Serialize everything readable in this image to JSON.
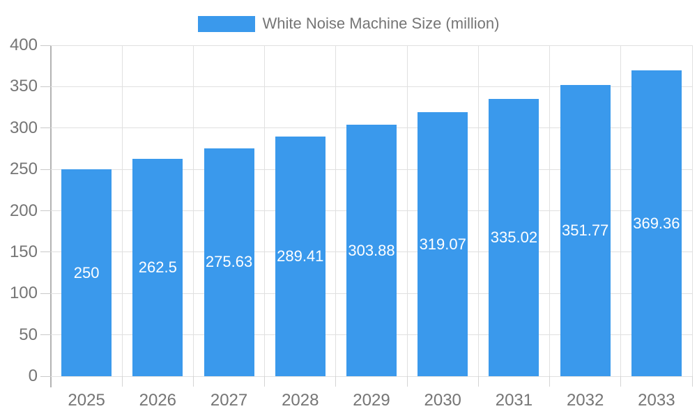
{
  "legend": {
    "label": "White Noise Machine Size (million)"
  },
  "chart_data": {
    "type": "bar",
    "title": "",
    "categories": [
      "2025",
      "2026",
      "2027",
      "2028",
      "2029",
      "2030",
      "2031",
      "2032",
      "2033"
    ],
    "series": [
      {
        "name": "White Noise Machine Size (million)",
        "values": [
          250,
          262.5,
          275.63,
          289.41,
          303.88,
          319.07,
          335.02,
          351.77,
          369.36
        ]
      }
    ],
    "value_labels": [
      "250",
      "262.5",
      "275.63",
      "289.41",
      "303.88",
      "319.07",
      "335.02",
      "351.77",
      "369.36"
    ],
    "xlabel": "",
    "ylabel": "",
    "ylim": [
      0,
      400
    ],
    "yticks": [
      0,
      50,
      100,
      150,
      200,
      250,
      300,
      350,
      400
    ],
    "grid": true,
    "legend_position": "top",
    "value_label_position": "inside-middle",
    "colors": {
      "bar": "#3A99EC",
      "gridline": "#e0e0e0",
      "axis_line": "#b3b3b3",
      "tick_label": "#757575",
      "bar_label": "#ffffff",
      "background": "#ffffff"
    }
  }
}
